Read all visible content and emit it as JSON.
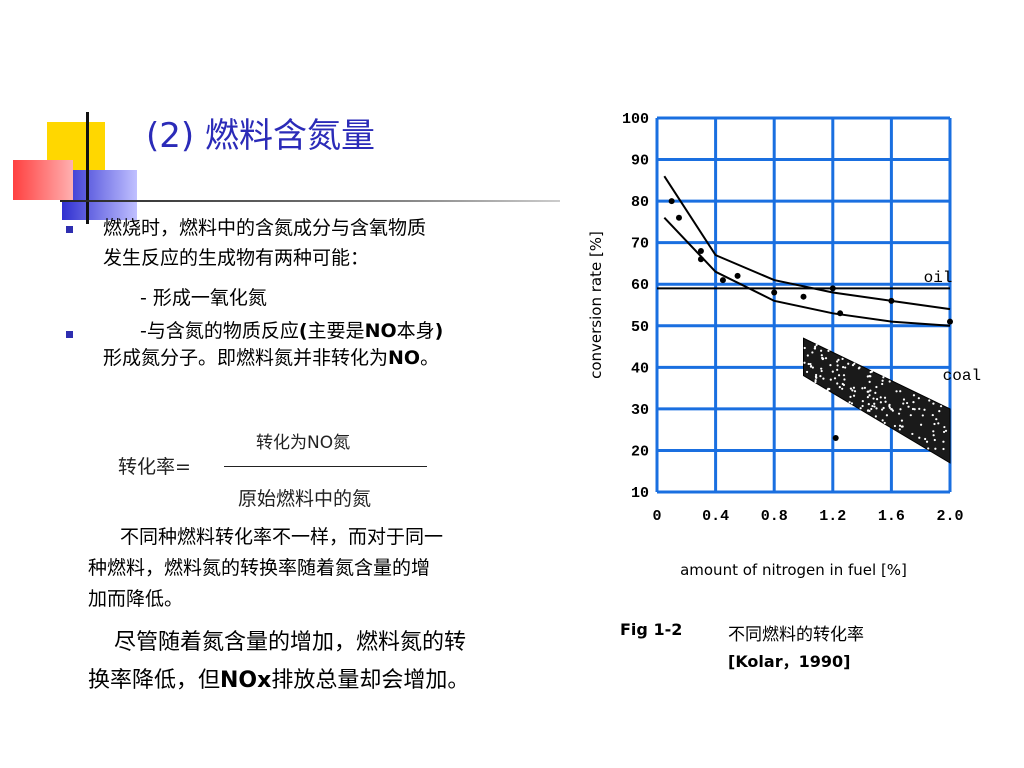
{
  "slide": {
    "title": "(2)  燃料含氮量",
    "bullet1_line1": "燃烧时，燃料中的含氮成分与含氧物质",
    "bullet1_line2": "发生反应的生成物有两种可能：",
    "sub1": "- 形成一氧化氮",
    "sub2_prefix": "-与含氮的物质反应",
    "sub2_paren_open": "(",
    "sub2_mid": "主要是",
    "sub2_no": "NO",
    "sub2_suffix": "本身",
    "sub2_paren_close": ")",
    "sub2_line2_a": "形成氮分子。即燃料氮并非转化为",
    "sub2_line2_no": "NO",
    "sub2_line2_end": "。",
    "formula_label": "转化率=",
    "formula_numerator": "转化为NO氮",
    "formula_denominator": "原始燃料中的氮",
    "para1_line1": "不同种燃料转化率不一样，而对于同一",
    "para1_line2": "种燃料，燃料氮的转换率随着氮含量的增",
    "para1_line3": "加而降低。",
    "para2_line1": "尽管随着氮含量的增加，燃料氮的转",
    "para2_line2_a": "换率降低，但",
    "para2_line2_nox": "NOx",
    "para2_line2_b": "排放总量却会增加。",
    "caption_fig": "Fig 1-2",
    "caption_text": "不同燃料的转化率",
    "caption_ref": "[Kolar，1990]"
  },
  "colors": {
    "title": "#2b2bb8",
    "grid": "#1a6fe0",
    "bullet": "#2e2eb0"
  },
  "chart_data": {
    "type": "scatter",
    "xlabel": "amount of nitrogen in fuel [%]",
    "ylabel": "conversion rate [%]",
    "xlim": [
      0,
      2.0
    ],
    "ylim": [
      10,
      100
    ],
    "xticks": [
      "0",
      "0.4",
      "0.8",
      "1.2",
      "1.6",
      "2.0"
    ],
    "yticks": [
      "100",
      "90",
      "80",
      "70",
      "60",
      "50",
      "40",
      "30",
      "20",
      "10"
    ],
    "grid": true,
    "series": [
      {
        "name": "oil",
        "values": [
          {
            "x": 0.1,
            "y": 80
          },
          {
            "x": 0.15,
            "y": 76
          },
          {
            "x": 0.3,
            "y": 68
          },
          {
            "x": 0.3,
            "y": 66
          },
          {
            "x": 0.45,
            "y": 61
          },
          {
            "x": 0.55,
            "y": 62
          },
          {
            "x": 0.8,
            "y": 58
          },
          {
            "x": 1.0,
            "y": 57
          },
          {
            "x": 1.2,
            "y": 59
          },
          {
            "x": 1.25,
            "y": 53
          },
          {
            "x": 1.6,
            "y": 56
          },
          {
            "x": 2.0,
            "y": 51
          }
        ]
      },
      {
        "name": "coal",
        "values": [
          {
            "x": 1.22,
            "y": 23
          }
        ]
      }
    ],
    "coal_band": {
      "x_start": 1.0,
      "x_end": 2.0,
      "upper_start": 47,
      "upper_end": 30,
      "lower_start": 38,
      "lower_end": 17
    },
    "oil_curves": [
      {
        "points": [
          [
            0.05,
            86
          ],
          [
            0.4,
            67
          ],
          [
            0.8,
            61
          ],
          [
            1.2,
            58
          ],
          [
            1.6,
            56
          ],
          [
            2.0,
            54
          ]
        ]
      },
      {
        "points": [
          [
            0.05,
            76
          ],
          [
            0.4,
            63
          ],
          [
            0.8,
            56
          ],
          [
            1.2,
            53
          ],
          [
            1.6,
            51
          ],
          [
            2.0,
            50
          ]
        ]
      },
      {
        "points": [
          [
            0.0,
            59
          ],
          [
            2.0,
            59
          ]
        ]
      }
    ]
  }
}
